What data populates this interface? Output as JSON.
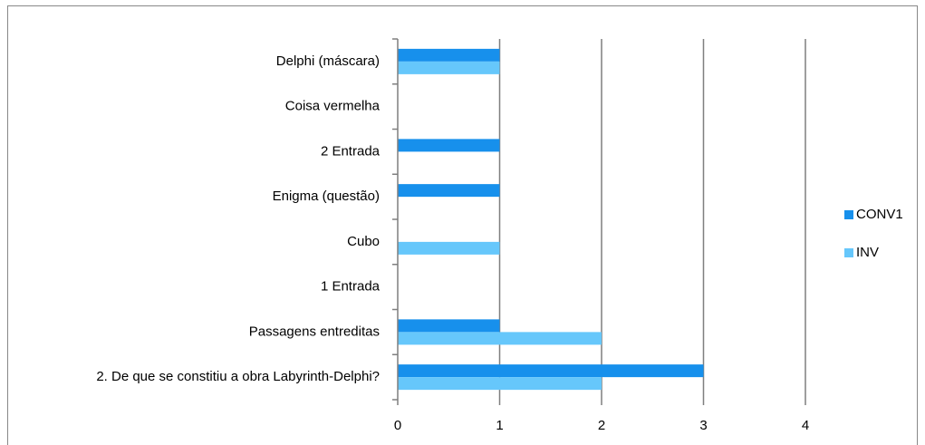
{
  "chart_data": {
    "type": "barh",
    "categories": [
      "Delphi (máscara)",
      "Coisa vermelha",
      "2 Entrada",
      "Enigma (questão)",
      "Cubo",
      "1 Entrada",
      "Passagens entreditas",
      "2. De que se constitiu a obra Labyrinth-Delphi?"
    ],
    "series": [
      {
        "name": "CONV1",
        "color": "#1790ec",
        "values": [
          1,
          0,
          1,
          1,
          0,
          0,
          1,
          3
        ]
      },
      {
        "name": "INV",
        "color": "#66c7fb",
        "values": [
          1,
          0,
          0,
          0,
          1,
          0,
          2,
          2
        ]
      }
    ],
    "xlim": [
      0,
      4
    ],
    "xticks": [
      0,
      1,
      2,
      3,
      4
    ],
    "grid": true,
    "legend": "right"
  }
}
